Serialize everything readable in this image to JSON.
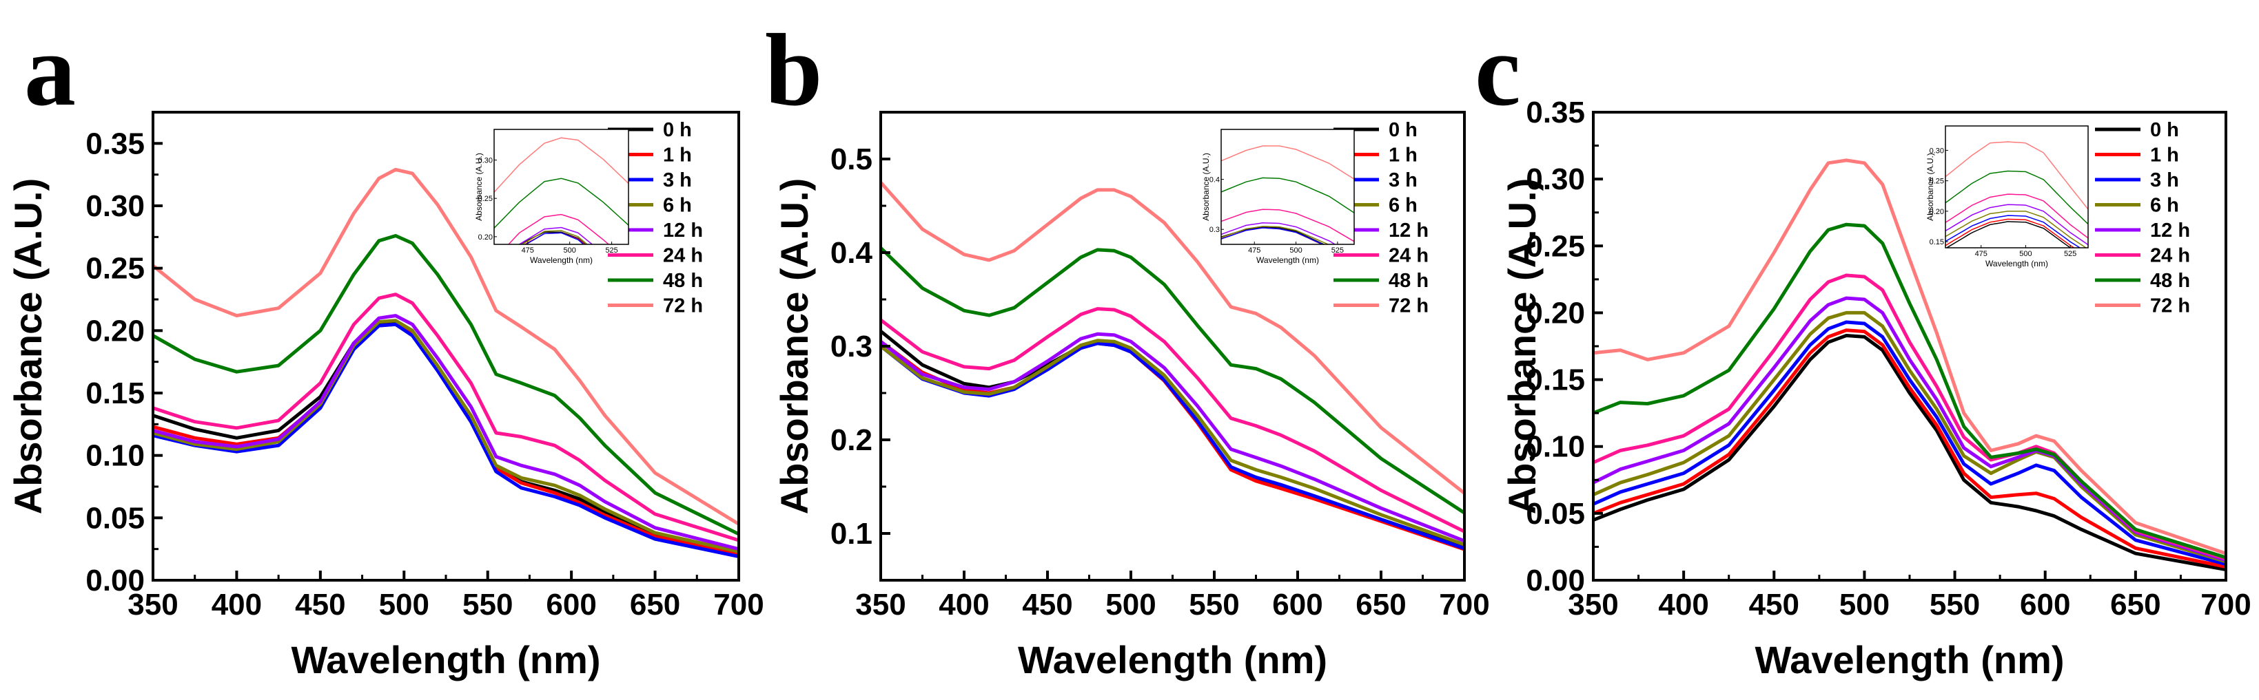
{
  "colors": {
    "0 h": "#000000",
    "1 h": "#ff0000",
    "3 h": "#0000ff",
    "6 h": "#808000",
    "12 h": "#9900ff",
    "24 h": "#ff1493",
    "48 h": "#007a00",
    "72 h": "#ff7b7b"
  },
  "chart_data": [
    {
      "type": "line",
      "panel": "a",
      "xlabel": "Wavelength (nm)",
      "ylabel": "Absorbance (A.U.)",
      "xlim": [
        350,
        700
      ],
      "ylim": [
        0,
        0.375
      ],
      "xticks": [
        "350",
        "400",
        "450",
        "500",
        "550",
        "600",
        "650",
        "700"
      ],
      "yticks": [
        "0.00",
        "0.05",
        "0.10",
        "0.15",
        "0.20",
        "0.25",
        "0.30",
        "0.35"
      ],
      "legend": [
        "0 h",
        "1 h",
        "3 h",
        "6 h",
        "12 h",
        "24 h",
        "48 h",
        "72 h"
      ],
      "x": [
        350,
        375,
        400,
        425,
        450,
        470,
        485,
        495,
        505,
        520,
        540,
        555,
        570,
        590,
        605,
        620,
        650,
        700
      ],
      "series": [
        {
          "name": "0 h",
          "values": [
            0.132,
            0.121,
            0.114,
            0.12,
            0.147,
            0.19,
            0.206,
            0.206,
            0.198,
            0.17,
            0.13,
            0.09,
            0.079,
            0.072,
            0.065,
            0.055,
            0.037,
            0.023
          ]
        },
        {
          "name": "1 h",
          "values": [
            0.123,
            0.114,
            0.109,
            0.114,
            0.142,
            0.186,
            0.204,
            0.205,
            0.197,
            0.17,
            0.13,
            0.09,
            0.078,
            0.07,
            0.062,
            0.052,
            0.035,
            0.021
          ]
        },
        {
          "name": "3 h",
          "values": [
            0.116,
            0.108,
            0.103,
            0.108,
            0.138,
            0.185,
            0.204,
            0.205,
            0.196,
            0.168,
            0.127,
            0.087,
            0.074,
            0.067,
            0.06,
            0.05,
            0.033,
            0.019
          ]
        },
        {
          "name": "6 h",
          "values": [
            0.118,
            0.109,
            0.105,
            0.111,
            0.141,
            0.188,
            0.207,
            0.208,
            0.2,
            0.172,
            0.132,
            0.092,
            0.082,
            0.076,
            0.068,
            0.057,
            0.038,
            0.023
          ]
        },
        {
          "name": "12 h",
          "values": [
            0.12,
            0.111,
            0.107,
            0.113,
            0.143,
            0.19,
            0.21,
            0.212,
            0.205,
            0.178,
            0.139,
            0.099,
            0.092,
            0.085,
            0.076,
            0.063,
            0.042,
            0.025
          ]
        },
        {
          "name": "24 h",
          "values": [
            0.138,
            0.127,
            0.122,
            0.128,
            0.158,
            0.205,
            0.226,
            0.229,
            0.222,
            0.196,
            0.158,
            0.118,
            0.115,
            0.108,
            0.096,
            0.08,
            0.053,
            0.032
          ]
        },
        {
          "name": "48 h",
          "values": [
            0.196,
            0.177,
            0.167,
            0.172,
            0.2,
            0.245,
            0.272,
            0.276,
            0.27,
            0.245,
            0.205,
            0.165,
            0.158,
            0.148,
            0.13,
            0.108,
            0.07,
            0.037
          ]
        },
        {
          "name": "72 h",
          "values": [
            0.252,
            0.225,
            0.212,
            0.218,
            0.246,
            0.294,
            0.322,
            0.329,
            0.326,
            0.301,
            0.259,
            0.216,
            0.203,
            0.185,
            0.16,
            0.132,
            0.086,
            0.045
          ]
        }
      ],
      "inset": {
        "xlabel": "Wavelength (nm)",
        "ylabel": "Absorbance (A.U.)",
        "xlim": [
          455,
          535
        ],
        "ylim": [
          0.19,
          0.34
        ],
        "xticks": [
          475,
          500,
          525
        ],
        "yticks": [
          0.2,
          0.25,
          0.3
        ],
        "ytick_labels": [
          "0.20",
          "0.25",
          "0.30"
        ]
      }
    },
    {
      "type": "line",
      "panel": "b",
      "xlabel": "Wavelength (nm)",
      "ylabel": "Absorbance (A.U.)",
      "xlim": [
        350,
        700
      ],
      "ylim": [
        0.05,
        0.55
      ],
      "xticks": [
        "350",
        "400",
        "450",
        "500",
        "550",
        "600",
        "650",
        "700"
      ],
      "yticks": [
        "0.1",
        "0.2",
        "0.3",
        "0.4",
        "0.5"
      ],
      "legend": [
        "0 h",
        "1 h",
        "3 h",
        "6 h",
        "12 h",
        "24 h",
        "48 h",
        "72 h"
      ],
      "x": [
        350,
        375,
        400,
        415,
        430,
        450,
        470,
        480,
        490,
        500,
        520,
        540,
        560,
        575,
        590,
        610,
        650,
        700
      ],
      "series": [
        {
          "name": "0 h",
          "values": [
            0.316,
            0.28,
            0.26,
            0.256,
            0.262,
            0.28,
            0.3,
            0.305,
            0.303,
            0.296,
            0.265,
            0.22,
            0.17,
            0.158,
            0.15,
            0.14,
            0.115,
            0.085
          ]
        },
        {
          "name": "1 h",
          "values": [
            0.305,
            0.272,
            0.253,
            0.25,
            0.256,
            0.276,
            0.298,
            0.303,
            0.301,
            0.294,
            0.263,
            0.218,
            0.168,
            0.156,
            0.148,
            0.137,
            0.113,
            0.083
          ]
        },
        {
          "name": "3 h",
          "values": [
            0.3,
            0.265,
            0.25,
            0.247,
            0.254,
            0.275,
            0.298,
            0.303,
            0.301,
            0.294,
            0.264,
            0.22,
            0.171,
            0.16,
            0.152,
            0.14,
            0.115,
            0.084
          ]
        },
        {
          "name": "6 h",
          "values": [
            0.3,
            0.266,
            0.251,
            0.249,
            0.256,
            0.278,
            0.301,
            0.306,
            0.305,
            0.298,
            0.269,
            0.226,
            0.178,
            0.168,
            0.16,
            0.148,
            0.12,
            0.088
          ]
        },
        {
          "name": "12 h",
          "values": [
            0.305,
            0.27,
            0.256,
            0.254,
            0.262,
            0.284,
            0.308,
            0.313,
            0.312,
            0.305,
            0.277,
            0.236,
            0.19,
            0.181,
            0.172,
            0.158,
            0.127,
            0.092
          ]
        },
        {
          "name": "24 h",
          "values": [
            0.328,
            0.294,
            0.278,
            0.276,
            0.285,
            0.31,
            0.334,
            0.34,
            0.339,
            0.332,
            0.305,
            0.266,
            0.223,
            0.215,
            0.205,
            0.188,
            0.146,
            0.102
          ]
        },
        {
          "name": "48 h",
          "values": [
            0.405,
            0.362,
            0.338,
            0.333,
            0.341,
            0.368,
            0.395,
            0.403,
            0.402,
            0.395,
            0.366,
            0.322,
            0.28,
            0.276,
            0.265,
            0.24,
            0.18,
            0.122
          ]
        },
        {
          "name": "72 h",
          "values": [
            0.475,
            0.425,
            0.398,
            0.392,
            0.402,
            0.43,
            0.458,
            0.467,
            0.467,
            0.46,
            0.432,
            0.39,
            0.342,
            0.335,
            0.32,
            0.29,
            0.213,
            0.143
          ]
        }
      ],
      "inset": {
        "xlabel": "Wavelength (nm)",
        "ylabel": "Absorbance (A.U.)",
        "xlim": [
          455,
          535
        ],
        "ylim": [
          0.27,
          0.5
        ],
        "xticks": [
          475,
          500,
          525
        ],
        "yticks": [
          0.3,
          0.4
        ],
        "ytick_labels": [
          "0.3",
          "0.4"
        ]
      }
    },
    {
      "type": "line",
      "panel": "c",
      "xlabel": "Wavelength (nm)",
      "ylabel": "Absorbance (A.U.)",
      "xlim": [
        350,
        700
      ],
      "ylim": [
        0,
        0.35
      ],
      "xticks": [
        "350",
        "400",
        "450",
        "500",
        "550",
        "600",
        "650",
        "700"
      ],
      "yticks": [
        "0.00",
        "0.05",
        "0.10",
        "0.15",
        "0.20",
        "0.25",
        "0.30",
        "0.35"
      ],
      "legend": [
        "0 h",
        "1 h",
        "3 h",
        "6 h",
        "12 h",
        "24 h",
        "48 h",
        "72 h"
      ],
      "x": [
        350,
        365,
        380,
        400,
        425,
        450,
        470,
        480,
        490,
        500,
        510,
        525,
        540,
        555,
        570,
        585,
        595,
        605,
        620,
        650,
        700
      ],
      "series": [
        {
          "name": "0 h",
          "values": [
            0.045,
            0.053,
            0.06,
            0.068,
            0.09,
            0.13,
            0.165,
            0.178,
            0.183,
            0.182,
            0.172,
            0.14,
            0.112,
            0.075,
            0.058,
            0.055,
            0.052,
            0.048,
            0.038,
            0.02,
            0.008
          ]
        },
        {
          "name": "1 h",
          "values": [
            0.05,
            0.058,
            0.064,
            0.072,
            0.094,
            0.135,
            0.17,
            0.182,
            0.187,
            0.186,
            0.176,
            0.144,
            0.116,
            0.08,
            0.062,
            0.064,
            0.065,
            0.061,
            0.047,
            0.024,
            0.01
          ]
        },
        {
          "name": "3 h",
          "values": [
            0.057,
            0.066,
            0.072,
            0.08,
            0.101,
            0.142,
            0.176,
            0.188,
            0.193,
            0.192,
            0.182,
            0.15,
            0.122,
            0.087,
            0.072,
            0.08,
            0.086,
            0.082,
            0.062,
            0.03,
            0.012
          ]
        },
        {
          "name": "6 h",
          "values": [
            0.064,
            0.073,
            0.079,
            0.088,
            0.108,
            0.15,
            0.184,
            0.196,
            0.2,
            0.2,
            0.19,
            0.157,
            0.128,
            0.093,
            0.08,
            0.09,
            0.096,
            0.092,
            0.07,
            0.034,
            0.014
          ]
        },
        {
          "name": "12 h",
          "values": [
            0.073,
            0.083,
            0.089,
            0.097,
            0.117,
            0.159,
            0.194,
            0.206,
            0.211,
            0.21,
            0.2,
            0.165,
            0.135,
            0.099,
            0.085,
            0.092,
            0.097,
            0.093,
            0.072,
            0.036,
            0.015
          ]
        },
        {
          "name": "24 h",
          "values": [
            0.088,
            0.097,
            0.101,
            0.108,
            0.128,
            0.172,
            0.21,
            0.223,
            0.228,
            0.227,
            0.217,
            0.178,
            0.145,
            0.107,
            0.09,
            0.095,
            0.1,
            0.095,
            0.074,
            0.037,
            0.016
          ]
        },
        {
          "name": "48 h",
          "values": [
            0.125,
            0.133,
            0.132,
            0.138,
            0.157,
            0.203,
            0.246,
            0.262,
            0.266,
            0.265,
            0.252,
            0.207,
            0.165,
            0.115,
            0.092,
            0.095,
            0.098,
            0.094,
            0.074,
            0.038,
            0.017
          ]
        },
        {
          "name": "72 h",
          "values": [
            0.17,
            0.172,
            0.165,
            0.17,
            0.19,
            0.245,
            0.292,
            0.312,
            0.314,
            0.312,
            0.296,
            0.24,
            0.185,
            0.125,
            0.097,
            0.102,
            0.108,
            0.104,
            0.082,
            0.043,
            0.02
          ]
        }
      ],
      "inset": {
        "xlabel": "Wavelength (nm)",
        "ylabel": "Absorbance (A.U.)",
        "xlim": [
          455,
          535
        ],
        "ylim": [
          0.14,
          0.34
        ],
        "xticks": [
          475,
          500,
          525
        ],
        "yticks": [
          0.15,
          0.2,
          0.25,
          0.3
        ],
        "ytick_labels": [
          "0.15",
          "0.20",
          "0.25",
          "0.30"
        ]
      }
    }
  ]
}
